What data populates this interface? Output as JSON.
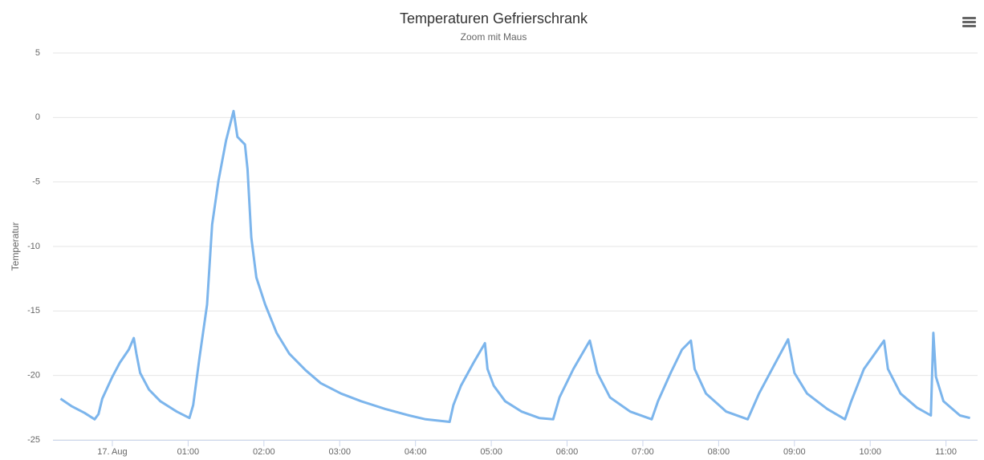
{
  "chart_data": {
    "type": "line",
    "title": "Temperaturen Gefrierschrank",
    "subtitle": "Zoom mit Maus",
    "y_label": "Temperatur",
    "x": [
      "23:19",
      "23:28",
      "23:38",
      "23:46",
      "23:49",
      "23:52",
      "00:00",
      "00:06",
      "00:13",
      "00:17",
      "00:19",
      "00:22",
      "00:29",
      "00:38",
      "00:51",
      "01:01",
      "01:04",
      "01:09",
      "01:15",
      "01:19",
      "01:24",
      "01:30",
      "01:36",
      "01:39",
      "01:45",
      "01:47",
      "01:50",
      "01:54",
      "02:01",
      "02:10",
      "02:20",
      "02:33",
      "02:45",
      "03:01",
      "03:17",
      "03:36",
      "03:55",
      "04:08",
      "04:27",
      "04:30",
      "04:36",
      "04:46",
      "04:55",
      "04:57",
      "05:02",
      "05:11",
      "05:24",
      "05:38",
      "05:49",
      "05:54",
      "06:05",
      "06:18",
      "06:24",
      "06:34",
      "06:50",
      "07:07",
      "07:12",
      "07:22",
      "07:31",
      "07:38",
      "07:41",
      "07:50",
      "08:06",
      "08:23",
      "08:32",
      "08:44",
      "08:55",
      "09:00",
      "09:10",
      "09:26",
      "09:40",
      "09:45",
      "09:55",
      "10:11",
      "10:14",
      "10:24",
      "10:37",
      "10:48",
      "10:50",
      "10:52",
      "10:58",
      "11:11",
      "11:19"
    ],
    "series": [
      {
        "name": "Temperatur",
        "color": "#7cb5ec",
        "values": [
          -21.8,
          -22.4,
          -22.9,
          -23.4,
          -23.0,
          -21.8,
          -20.1,
          -19.0,
          -18.0,
          -17.1,
          -18.3,
          -19.8,
          -21.1,
          -22.0,
          -22.8,
          -23.3,
          -22.3,
          -18.6,
          -14.5,
          -8.3,
          -4.9,
          -1.8,
          0.5,
          -1.5,
          -2.1,
          -4.0,
          -9.3,
          -12.4,
          -14.5,
          -16.7,
          -18.3,
          -19.6,
          -20.6,
          -21.4,
          -22.0,
          -22.6,
          -23.1,
          -23.4,
          -23.6,
          -22.3,
          -20.8,
          -19.0,
          -17.5,
          -19.5,
          -20.8,
          -22.0,
          -22.8,
          -23.3,
          -23.4,
          -21.7,
          -19.5,
          -17.3,
          -19.8,
          -21.7,
          -22.8,
          -23.4,
          -22.0,
          -19.8,
          -18.0,
          -17.3,
          -19.5,
          -21.4,
          -22.8,
          -23.4,
          -21.4,
          -19.2,
          -17.2,
          -19.8,
          -21.4,
          -22.6,
          -23.4,
          -22.0,
          -19.5,
          -17.3,
          -19.5,
          -21.4,
          -22.5,
          -23.1,
          -16.7,
          -20.1,
          -22.0,
          -23.1,
          -23.3
        ]
      }
    ],
    "xlim": [
      "23:13",
      "11:25"
    ],
    "xticks": [
      {
        "value": "00:00",
        "label": "17. Aug"
      },
      "01:00",
      "02:00",
      "03:00",
      "04:00",
      "05:00",
      "06:00",
      "07:00",
      "08:00",
      "09:00",
      "10:00",
      "11:00"
    ],
    "ylim": [
      -25,
      5
    ],
    "yticks": [
      5,
      0,
      -5,
      -10,
      -15,
      -20,
      -25
    ],
    "grid": true
  }
}
